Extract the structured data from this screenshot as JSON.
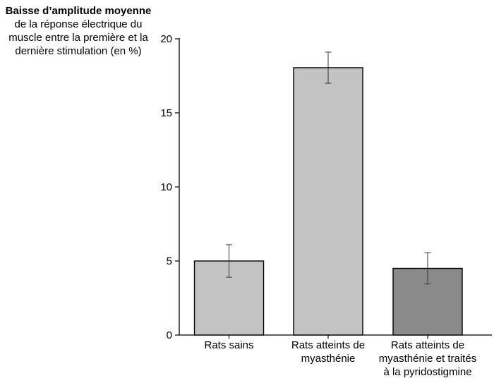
{
  "chart_data": {
    "type": "bar",
    "ylabel_bold": "Baisse d’amplitude moyenne",
    "ylabel_rest": " de la réponse électrique du muscle entre la première et la dernière stimulation (en %)",
    "categories": [
      "Rats sains",
      "Rats atteints de myasthénie",
      "Rats atteints de myasthénie et traités à la pyridostigmine"
    ],
    "values": [
      5.0,
      18.05,
      4.5
    ],
    "errors": [
      1.1,
      1.05,
      1.05
    ],
    "bar_colors": [
      "#c3c3c3",
      "#c3c3c3",
      "#8a8a8a"
    ],
    "ylim": [
      0,
      20
    ],
    "yticks": [
      0,
      5,
      10,
      15,
      20
    ],
    "grid": false
  }
}
